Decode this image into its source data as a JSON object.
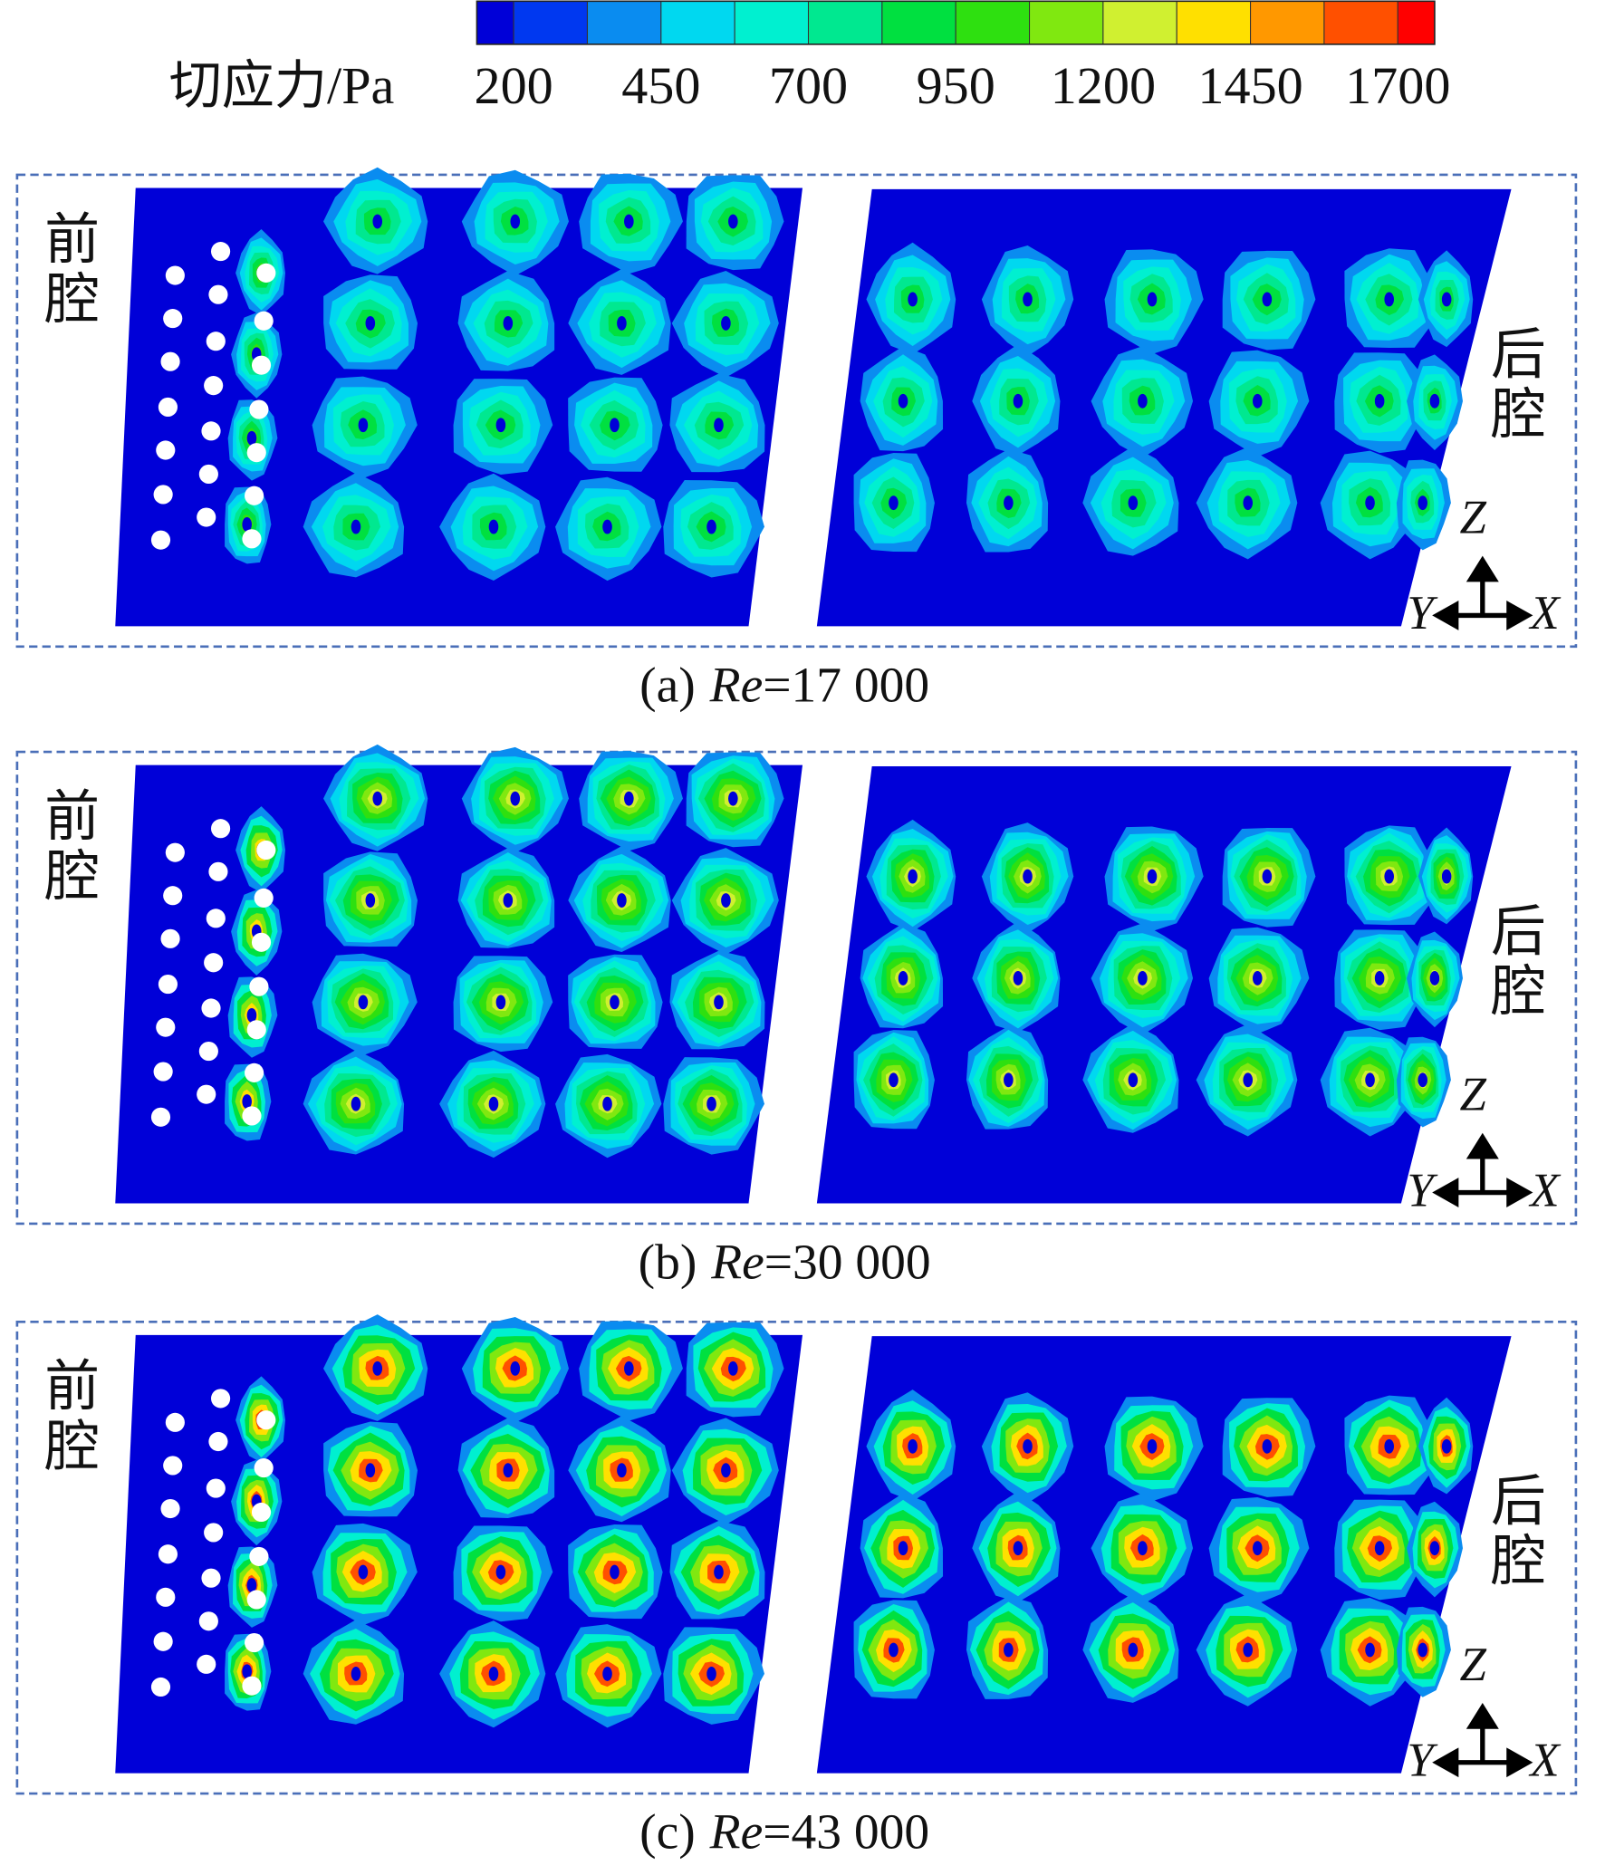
{
  "colorbar": {
    "label": "切应力/Pa",
    "colors": [
      "#0000d8",
      "#0038f0",
      "#0a8cf0",
      "#00d8f0",
      "#00f0d0",
      "#00e890",
      "#00e040",
      "#2ee010",
      "#80e810",
      "#d0f030",
      "#ffe000",
      "#ff9800",
      "#ff5000",
      "#ff0000"
    ],
    "ticks": [
      "200",
      "450",
      "700",
      "950",
      "1200",
      "1450",
      "1700"
    ]
  },
  "panels": [
    {
      "tag": "(a)",
      "variable": "Re",
      "value": "=17 000",
      "front_label": [
        "前",
        "腔"
      ],
      "rear_label": [
        "后",
        "腔"
      ],
      "axes": {
        "z": "Z",
        "y": "Y",
        "x": "X"
      }
    },
    {
      "tag": "(b)",
      "variable": "Re",
      "value": "=30 000",
      "front_label": [
        "前",
        "腔"
      ],
      "rear_label": [
        "后",
        "腔"
      ],
      "axes": {
        "z": "Z",
        "y": "Y",
        "x": "X"
      }
    },
    {
      "tag": "(c)",
      "variable": "Re",
      "value": "=43 000",
      "front_label": [
        "前",
        "腔"
      ],
      "rear_label": [
        "后",
        "腔"
      ],
      "axes": {
        "z": "Z",
        "y": "Y",
        "x": "X"
      }
    }
  ]
}
